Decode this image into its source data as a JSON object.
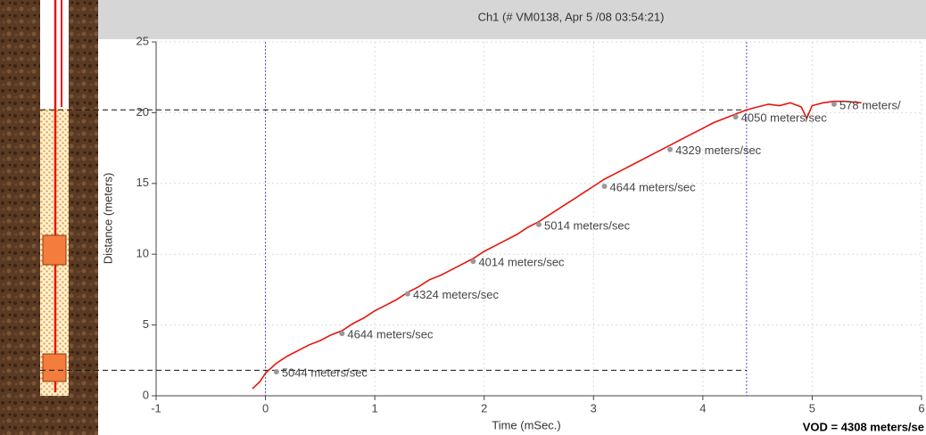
{
  "chart_data": {
    "type": "line",
    "title": "Ch1  (# VM0138, Apr 5 /08 03:54:21)",
    "x_label": "Time (mSec.)",
    "y_label": "Distance (meters)",
    "footer": "VOD = 4308 meters/se",
    "xlim": [
      -1,
      6
    ],
    "ylim": [
      0,
      25
    ],
    "xticks": [
      -1,
      0,
      1,
      2,
      3,
      4,
      5,
      6
    ],
    "yticks": [
      0,
      5,
      10,
      15,
      20,
      25
    ],
    "grid": true,
    "series": [
      {
        "color": "#e8140c",
        "x": [
          -0.12,
          -0.05,
          0,
          0.1,
          0.2,
          0.3,
          0.4,
          0.5,
          0.6,
          0.7,
          0.8,
          0.9,
          1.0,
          1.1,
          1.2,
          1.3,
          1.4,
          1.5,
          1.6,
          1.7,
          1.8,
          1.9,
          2.0,
          2.1,
          2.2,
          2.3,
          2.4,
          2.5,
          2.6,
          2.7,
          2.8,
          2.9,
          3.0,
          3.1,
          3.2,
          3.3,
          3.4,
          3.5,
          3.6,
          3.7,
          3.8,
          3.9,
          4.0,
          4.1,
          4.2,
          4.3,
          4.4,
          4.5,
          4.6,
          4.7,
          4.8,
          4.9,
          4.95,
          5.0,
          5.1,
          5.2,
          5.3,
          5.45
        ],
        "values": [
          0.5,
          1.0,
          1.6,
          2.3,
          2.8,
          3.2,
          3.6,
          3.9,
          4.3,
          4.6,
          5.1,
          5.5,
          6.0,
          6.4,
          6.8,
          7.3,
          7.7,
          8.2,
          8.5,
          8.9,
          9.3,
          9.7,
          10.2,
          10.6,
          11.0,
          11.4,
          11.9,
          12.3,
          12.8,
          13.3,
          13.8,
          14.3,
          14.8,
          15.3,
          15.7,
          16.1,
          16.5,
          16.9,
          17.3,
          17.7,
          18.1,
          18.5,
          18.9,
          19.3,
          19.6,
          19.9,
          20.2,
          20.4,
          20.6,
          20.5,
          20.7,
          20.4,
          19.6,
          20.5,
          20.7,
          20.8,
          20.8,
          20.7
        ]
      }
    ],
    "annotations": [
      {
        "x": 0.1,
        "y": 1.7,
        "text": "5044 meters/sec"
      },
      {
        "x": 0.7,
        "y": 4.4,
        "text": "4644 meters/sec"
      },
      {
        "x": 1.3,
        "y": 7.2,
        "text": "4324 meters/sec"
      },
      {
        "x": 1.9,
        "y": 9.5,
        "text": "4014 meters/sec"
      },
      {
        "x": 2.5,
        "y": 12.1,
        "text": "5014 meters/sec"
      },
      {
        "x": 3.1,
        "y": 14.8,
        "text": "4644 meters/sec"
      },
      {
        "x": 3.7,
        "y": 17.4,
        "text": "4329 meters/sec"
      },
      {
        "x": 4.3,
        "y": 19.7,
        "text": "4050 meters/sec"
      },
      {
        "x": 5.2,
        "y": 20.6,
        "text": "578 meters/"
      }
    ],
    "time_markers": [
      0,
      4.4
    ],
    "depth_markers": [
      1.8,
      20.2
    ]
  }
}
